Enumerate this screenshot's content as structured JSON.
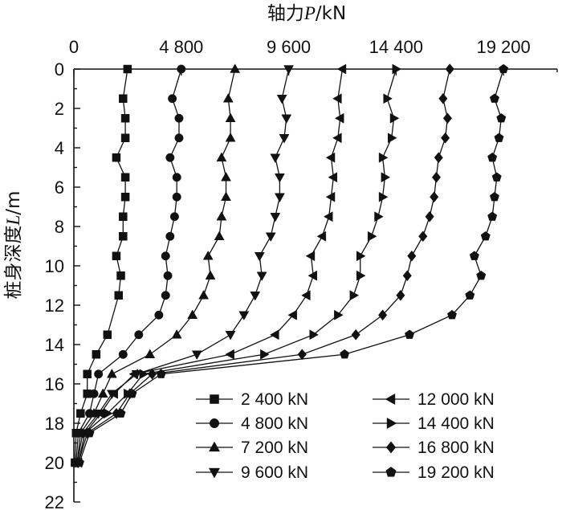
{
  "chart_data": {
    "type": "line",
    "x_title_parts": {
      "prefix": "轴力",
      "var": "P",
      "suffix": "/kN"
    },
    "y_title_parts": {
      "prefix": "桩身深度",
      "var": "L",
      "suffix": "/m"
    },
    "xlim": [
      0,
      21600
    ],
    "ylim": [
      0,
      22
    ],
    "x_ticks": [
      0,
      4800,
      9600,
      14400,
      19200
    ],
    "x_tick_labels": [
      "0",
      "4 800",
      "9 600",
      "14 400",
      "19 200"
    ],
    "y_ticks": [
      0,
      2,
      4,
      6,
      8,
      10,
      12,
      14,
      16,
      18,
      20,
      22
    ],
    "y_tick_labels": [
      "0",
      "2",
      "4",
      "6",
      "8",
      "10",
      "12",
      "14",
      "16",
      "18",
      "20",
      "22"
    ],
    "y_inverted": true,
    "x_axis_position": "top",
    "grid": false,
    "legend_position": "bottom-right",
    "series": [
      {
        "name": "2 400 kN",
        "marker": "square",
        "points": [
          [
            2400,
            0
          ],
          [
            2200,
            1.5
          ],
          [
            2300,
            2.5
          ],
          [
            2300,
            3.5
          ],
          [
            1900,
            4.5
          ],
          [
            2300,
            5.5
          ],
          [
            2300,
            6.5
          ],
          [
            2200,
            7.5
          ],
          [
            2200,
            8.5
          ],
          [
            1900,
            9.5
          ],
          [
            2100,
            10.5
          ],
          [
            2000,
            11.5
          ],
          [
            1500,
            13.5
          ],
          [
            1000,
            14.5
          ],
          [
            600,
            15.5
          ],
          [
            600,
            16.5
          ],
          [
            300,
            17.5
          ],
          [
            100,
            18.5
          ],
          [
            50,
            20
          ]
        ]
      },
      {
        "name": "4 800 kN",
        "marker": "circle",
        "points": [
          [
            4800,
            0
          ],
          [
            4400,
            1.5
          ],
          [
            4700,
            2.5
          ],
          [
            4700,
            3.5
          ],
          [
            4300,
            4.5
          ],
          [
            4600,
            5.5
          ],
          [
            4600,
            6.5
          ],
          [
            4500,
            7.5
          ],
          [
            4300,
            8.5
          ],
          [
            4100,
            9.5
          ],
          [
            4200,
            10.5
          ],
          [
            4100,
            11.5
          ],
          [
            3800,
            12.5
          ],
          [
            2900,
            13.5
          ],
          [
            2200,
            14.5
          ],
          [
            1100,
            15.5
          ],
          [
            900,
            16.5
          ],
          [
            700,
            17.5
          ],
          [
            200,
            18.5
          ],
          [
            100,
            20
          ]
        ]
      },
      {
        "name": "7 200 kN",
        "marker": "triangle-up",
        "points": [
          [
            7200,
            0
          ],
          [
            6900,
            1.5
          ],
          [
            7000,
            2.5
          ],
          [
            7000,
            3.5
          ],
          [
            6600,
            4.5
          ],
          [
            6800,
            5.5
          ],
          [
            6800,
            6.5
          ],
          [
            6600,
            7.5
          ],
          [
            6500,
            8.5
          ],
          [
            6000,
            9.5
          ],
          [
            6100,
            10.5
          ],
          [
            5800,
            11.5
          ],
          [
            5300,
            12.5
          ],
          [
            4600,
            13.5
          ],
          [
            3400,
            14.5
          ],
          [
            1700,
            15.5
          ],
          [
            1300,
            16.5
          ],
          [
            900,
            17.5
          ],
          [
            300,
            18.5
          ],
          [
            150,
            20
          ]
        ]
      },
      {
        "name": "9 600 kN",
        "marker": "triangle-down",
        "points": [
          [
            9600,
            0
          ],
          [
            9300,
            1.5
          ],
          [
            9500,
            2.5
          ],
          [
            9400,
            3.5
          ],
          [
            9000,
            4.5
          ],
          [
            9200,
            5.5
          ],
          [
            9200,
            6.5
          ],
          [
            9000,
            7.5
          ],
          [
            8800,
            8.5
          ],
          [
            8300,
            9.5
          ],
          [
            8400,
            10.5
          ],
          [
            8100,
            11.5
          ],
          [
            7600,
            12.5
          ],
          [
            7000,
            13.5
          ],
          [
            5500,
            14.5
          ],
          [
            2800,
            15.5
          ],
          [
            1700,
            16.5
          ],
          [
            1100,
            17.5
          ],
          [
            400,
            18.5
          ],
          [
            150,
            20
          ]
        ]
      },
      {
        "name": "12 000 kN",
        "marker": "triangle-left",
        "points": [
          [
            12000,
            0
          ],
          [
            11800,
            1.5
          ],
          [
            11900,
            2.5
          ],
          [
            11800,
            3.5
          ],
          [
            11500,
            4.5
          ],
          [
            11600,
            5.5
          ],
          [
            11500,
            6.5
          ],
          [
            11400,
            7.5
          ],
          [
            11100,
            8.5
          ],
          [
            10600,
            9.5
          ],
          [
            10700,
            10.5
          ],
          [
            10400,
            11.5
          ],
          [
            9800,
            12.5
          ],
          [
            9000,
            13.5
          ],
          [
            7000,
            14.5
          ],
          [
            2700,
            15.5
          ],
          [
            1800,
            16.5
          ],
          [
            1200,
            17.5
          ],
          [
            500,
            18.5
          ],
          [
            200,
            20
          ]
        ]
      },
      {
        "name": "14 400 kN",
        "marker": "triangle-right",
        "points": [
          [
            14400,
            0
          ],
          [
            14000,
            1.5
          ],
          [
            14300,
            2.5
          ],
          [
            14200,
            3.5
          ],
          [
            13800,
            4.5
          ],
          [
            13900,
            5.5
          ],
          [
            13800,
            6.5
          ],
          [
            13600,
            7.5
          ],
          [
            13300,
            8.5
          ],
          [
            12800,
            9.5
          ],
          [
            12800,
            10.5
          ],
          [
            12500,
            11.5
          ],
          [
            11800,
            12.5
          ],
          [
            10700,
            13.5
          ],
          [
            8500,
            14.5
          ],
          [
            3100,
            15.5
          ],
          [
            2400,
            16.5
          ],
          [
            1500,
            17.5
          ],
          [
            500,
            18.5
          ],
          [
            200,
            20
          ]
        ]
      },
      {
        "name": "16 800 kN",
        "marker": "diamond",
        "points": [
          [
            16800,
            0
          ],
          [
            16500,
            1.5
          ],
          [
            16700,
            2.5
          ],
          [
            16600,
            3.5
          ],
          [
            16300,
            4.5
          ],
          [
            16200,
            5.5
          ],
          [
            16100,
            6.5
          ],
          [
            15900,
            7.5
          ],
          [
            15600,
            8.5
          ],
          [
            15100,
            9.5
          ],
          [
            14900,
            10.5
          ],
          [
            14600,
            11.5
          ],
          [
            13800,
            12.5
          ],
          [
            12600,
            13.5
          ],
          [
            10200,
            14.5
          ],
          [
            3500,
            15.5
          ],
          [
            2500,
            16.5
          ],
          [
            1900,
            17.5
          ],
          [
            600,
            18.5
          ],
          [
            200,
            20
          ]
        ]
      },
      {
        "name": "19 200 kN",
        "marker": "pentagon",
        "points": [
          [
            19200,
            0
          ],
          [
            18800,
            1.5
          ],
          [
            19100,
            2.5
          ],
          [
            19000,
            3.5
          ],
          [
            18700,
            4.5
          ],
          [
            18900,
            5.5
          ],
          [
            18800,
            6.5
          ],
          [
            18700,
            7.5
          ],
          [
            18400,
            8.5
          ],
          [
            17900,
            9.5
          ],
          [
            18200,
            10.5
          ],
          [
            17700,
            11.5
          ],
          [
            16900,
            12.5
          ],
          [
            15000,
            13.5
          ],
          [
            12100,
            14.5
          ],
          [
            3900,
            15.5
          ],
          [
            2600,
            16.5
          ],
          [
            2100,
            17.5
          ],
          [
            700,
            18.5
          ],
          [
            250,
            20
          ]
        ]
      }
    ]
  }
}
